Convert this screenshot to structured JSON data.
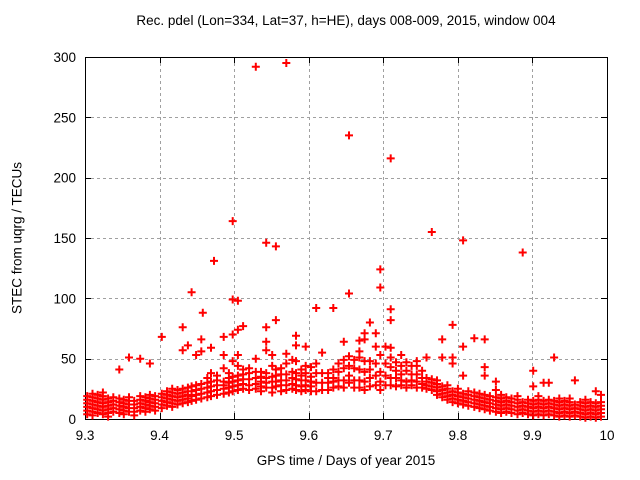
{
  "chart_data": {
    "type": "scatter",
    "title": "Rec. pdel (Lon=334, Lat=37, h=HE), days 008-009, 2015, window 004",
    "xlabel": "GPS time / Days of year 2015",
    "ylabel": "STEC from uqrg / TECUs",
    "xlim": [
      9.3,
      10
    ],
    "ylim": [
      0,
      300
    ],
    "xticks": [
      9.3,
      9.4,
      9.5,
      9.6,
      9.7,
      9.8,
      9.9,
      10
    ],
    "xtick_labels": [
      "9.3",
      "9.4",
      "9.5",
      "9.6",
      "9.7",
      "9.8",
      "9.9",
      "10"
    ],
    "yticks": [
      0,
      50,
      100,
      150,
      200,
      250,
      300
    ],
    "ytick_labels": [
      "0",
      "50",
      "100",
      "150",
      "200",
      "250",
      "300"
    ],
    "grid": "on",
    "legend": "none",
    "marker": "plus",
    "marker_color": "#ff0000",
    "grid_color": "#a0a0a0",
    "axis_color": "#000000",
    "columns": [
      {
        "x": 9.303,
        "ys": [
          4,
          7,
          10,
          13,
          16,
          19
        ]
      },
      {
        "x": 9.31,
        "ys": [
          3,
          6,
          9,
          12,
          15,
          18,
          21
        ]
      },
      {
        "x": 9.317,
        "ys": [
          5,
          8,
          11,
          14,
          17,
          20
        ]
      },
      {
        "x": 9.324,
        "ys": [
          4,
          7,
          10,
          13,
          16,
          19,
          22
        ]
      },
      {
        "x": 9.331,
        "ys": [
          2,
          5,
          8,
          11,
          14,
          17
        ]
      },
      {
        "x": 9.338,
        "ys": [
          6,
          9,
          12,
          15,
          18
        ]
      },
      {
        "x": 9.346,
        "ys": [
          5,
          8,
          11,
          14,
          17,
          41
        ]
      },
      {
        "x": 9.352,
        "ys": [
          4,
          7,
          10,
          13,
          16
        ]
      },
      {
        "x": 9.359,
        "ys": [
          6,
          9,
          12,
          15,
          18,
          51
        ]
      },
      {
        "x": 9.366,
        "ys": [
          3,
          6,
          9,
          12,
          15
        ]
      },
      {
        "x": 9.374,
        "ys": [
          7,
          10,
          13,
          16,
          19,
          50
        ]
      },
      {
        "x": 9.381,
        "ys": [
          6,
          9,
          12,
          15,
          18
        ]
      },
      {
        "x": 9.387,
        "ys": [
          8,
          11,
          14,
          17,
          20,
          46
        ]
      },
      {
        "x": 9.394,
        "ys": [
          7,
          10,
          13,
          16,
          19
        ]
      },
      {
        "x": 9.403,
        "ys": [
          9,
          12,
          15,
          18,
          21,
          68
        ]
      },
      {
        "x": 9.41,
        "ys": [
          11,
          14,
          17,
          20,
          23
        ]
      },
      {
        "x": 9.417,
        "ys": [
          10,
          13,
          16,
          19,
          22,
          25
        ]
      },
      {
        "x": 9.424,
        "ys": [
          12,
          15,
          18,
          21,
          24
        ]
      },
      {
        "x": 9.431,
        "ys": [
          13,
          16,
          19,
          22,
          25,
          57,
          76
        ]
      },
      {
        "x": 9.438,
        "ys": [
          14,
          17,
          20,
          23,
          26,
          61
        ]
      },
      {
        "x": 9.443,
        "ys": [
          15,
          19,
          23,
          27,
          105
        ]
      },
      {
        "x": 9.449,
        "ys": [
          16,
          20,
          24,
          28,
          53
        ]
      },
      {
        "x": 9.456,
        "ys": [
          17,
          21,
          25,
          29,
          56,
          66
        ]
      },
      {
        "x": 9.458,
        "ys": [
          88
        ]
      },
      {
        "x": 9.464,
        "ys": [
          18,
          22,
          26,
          30,
          34
        ]
      },
      {
        "x": 9.469,
        "ys": [
          19,
          23,
          27,
          31,
          38,
          59
        ]
      },
      {
        "x": 9.473,
        "ys": [
          131
        ]
      },
      {
        "x": 9.477,
        "ys": [
          20,
          24,
          28,
          32,
          36
        ]
      },
      {
        "x": 9.486,
        "ys": [
          21,
          25,
          28,
          31,
          42,
          53,
          68
        ]
      },
      {
        "x": 9.493,
        "ys": [
          22,
          26,
          30,
          34,
          38
        ]
      },
      {
        "x": 9.498,
        "ys": [
          23,
          27,
          31,
          35,
          48,
          70,
          99,
          164
        ]
      },
      {
        "x": 9.505,
        "ys": [
          24,
          28,
          32,
          36,
          44,
          53,
          74,
          98
        ]
      },
      {
        "x": 9.512,
        "ys": [
          25,
          29,
          33,
          37,
          41,
          77
        ]
      },
      {
        "x": 9.52,
        "ys": [
          24,
          28,
          33,
          38,
          42
        ]
      },
      {
        "x": 9.529,
        "ys": [
          25,
          29,
          34,
          39,
          50,
          292
        ]
      },
      {
        "x": 9.536,
        "ys": [
          23,
          27,
          31,
          35,
          39
        ]
      },
      {
        "x": 9.543,
        "ys": [
          26,
          30,
          34,
          38,
          57,
          64,
          76,
          146
        ]
      },
      {
        "x": 9.551,
        "ys": [
          22,
          26,
          31,
          35,
          44,
          53
        ]
      },
      {
        "x": 9.556,
        "ys": [
          27,
          31,
          36,
          41,
          82,
          143
        ]
      },
      {
        "x": 9.563,
        "ys": [
          23,
          28,
          32,
          37,
          42
        ]
      },
      {
        "x": 9.57,
        "ys": [
          24,
          28,
          32,
          37,
          46,
          54,
          295
        ]
      },
      {
        "x": 9.578,
        "ys": [
          25,
          29,
          34,
          39,
          49
        ]
      },
      {
        "x": 9.583,
        "ys": [
          24,
          28,
          33,
          38,
          48,
          61,
          69
        ]
      },
      {
        "x": 9.59,
        "ys": [
          23,
          27,
          32,
          36,
          41
        ]
      },
      {
        "x": 9.596,
        "ys": [
          24,
          28,
          32,
          38,
          44,
          60
        ]
      },
      {
        "x": 9.603,
        "ys": [
          23,
          27,
          31,
          35,
          43
        ]
      },
      {
        "x": 9.61,
        "ys": [
          23,
          30,
          38,
          46,
          92
        ]
      },
      {
        "x": 9.618,
        "ys": [
          24,
          30,
          38,
          55
        ]
      },
      {
        "x": 9.626,
        "ys": [
          24,
          30,
          34,
          38
        ]
      },
      {
        "x": 9.633,
        "ys": [
          26,
          31,
          34,
          41,
          92
        ]
      },
      {
        "x": 9.64,
        "ys": [
          27,
          32,
          39,
          46
        ]
      },
      {
        "x": 9.647,
        "ys": [
          26,
          32,
          42,
          49,
          64
        ]
      },
      {
        "x": 9.654,
        "ys": [
          30,
          36,
          44,
          52,
          104,
          235
        ]
      },
      {
        "x": 9.661,
        "ys": [
          26,
          32,
          42,
          49
        ]
      },
      {
        "x": 9.668,
        "ys": [
          26,
          32,
          41,
          51,
          56,
          65
        ]
      },
      {
        "x": 9.675,
        "ys": [
          24,
          31,
          39,
          48,
          66,
          71
        ]
      },
      {
        "x": 9.682,
        "ys": [
          27,
          34,
          41,
          48,
          80
        ]
      },
      {
        "x": 9.69,
        "ys": [
          28,
          36,
          46,
          60,
          71
        ]
      },
      {
        "x": 9.696,
        "ys": [
          24,
          31,
          39,
          53,
          109,
          124
        ]
      },
      {
        "x": 9.703,
        "ys": [
          28,
          36,
          46,
          60
        ]
      },
      {
        "x": 9.71,
        "ys": [
          28,
          34,
          43,
          51,
          59,
          82,
          91,
          216
        ]
      },
      {
        "x": 9.717,
        "ys": [
          27,
          34,
          40,
          47
        ]
      },
      {
        "x": 9.724,
        "ys": [
          28,
          32,
          37,
          44,
          53
        ]
      },
      {
        "x": 9.731,
        "ys": [
          26,
          31,
          40,
          47
        ]
      },
      {
        "x": 9.738,
        "ys": [
          28,
          32,
          37,
          44
        ]
      },
      {
        "x": 9.745,
        "ys": [
          26,
          31,
          37,
          44,
          48
        ]
      },
      {
        "x": 9.752,
        "ys": [
          26,
          29,
          34,
          40
        ]
      },
      {
        "x": 9.758,
        "ys": [
          25,
          28,
          31,
          34,
          51
        ]
      },
      {
        "x": 9.765,
        "ys": [
          24,
          27,
          30,
          33,
          155
        ]
      },
      {
        "x": 9.772,
        "ys": [
          20,
          23,
          26,
          29,
          32
        ]
      },
      {
        "x": 9.779,
        "ys": [
          18,
          21,
          24,
          27,
          51,
          66
        ]
      },
      {
        "x": 9.786,
        "ys": [
          16,
          19,
          22,
          25,
          28
        ]
      },
      {
        "x": 9.793,
        "ys": [
          14,
          17,
          20,
          23,
          46,
          51,
          78
        ]
      },
      {
        "x": 9.8,
        "ys": [
          13,
          16,
          19,
          22,
          25
        ]
      },
      {
        "x": 9.807,
        "ys": [
          12,
          15,
          18,
          21,
          36,
          60,
          148
        ]
      },
      {
        "x": 9.814,
        "ys": [
          11,
          14,
          17,
          20,
          23
        ]
      },
      {
        "x": 9.822,
        "ys": [
          10,
          13,
          16,
          19,
          22,
          67
        ]
      },
      {
        "x": 9.829,
        "ys": [
          9,
          12,
          15,
          18,
          21
        ]
      },
      {
        "x": 9.836,
        "ys": [
          8,
          11,
          14,
          17,
          20,
          36,
          43,
          66
        ]
      },
      {
        "x": 9.843,
        "ys": [
          7,
          10,
          13,
          16,
          19
        ]
      },
      {
        "x": 9.851,
        "ys": [
          6,
          9,
          12,
          15,
          18,
          24,
          31
        ]
      },
      {
        "x": 9.858,
        "ys": [
          5,
          8,
          11,
          14,
          17,
          20
        ]
      },
      {
        "x": 9.865,
        "ys": [
          6,
          9,
          12,
          15,
          18
        ]
      },
      {
        "x": 9.872,
        "ys": [
          5,
          8,
          11,
          14,
          17
        ]
      },
      {
        "x": 9.88,
        "ys": [
          4,
          7,
          10,
          13,
          16,
          19
        ]
      },
      {
        "x": 9.887,
        "ys": [
          5,
          8,
          11,
          14,
          138
        ]
      },
      {
        "x": 9.894,
        "ys": [
          4,
          7,
          10,
          13,
          16
        ]
      },
      {
        "x": 9.901,
        "ys": [
          3,
          6,
          9,
          12,
          15,
          27,
          40
        ]
      },
      {
        "x": 9.908,
        "ys": [
          4,
          7,
          10,
          13,
          16,
          19
        ]
      },
      {
        "x": 9.915,
        "ys": [
          3,
          6,
          9,
          12,
          15,
          30
        ]
      },
      {
        "x": 9.922,
        "ys": [
          4,
          7,
          10,
          13,
          16,
          30
        ]
      },
      {
        "x": 9.929,
        "ys": [
          3,
          6,
          9,
          12,
          15,
          51
        ]
      },
      {
        "x": 9.936,
        "ys": [
          2,
          5,
          8,
          11,
          14,
          17
        ]
      },
      {
        "x": 9.943,
        "ys": [
          3,
          6,
          9,
          12,
          15
        ]
      },
      {
        "x": 9.95,
        "ys": [
          2,
          5,
          8,
          11,
          14,
          17
        ]
      },
      {
        "x": 9.957,
        "ys": [
          3,
          6,
          9,
          12,
          32
        ]
      },
      {
        "x": 9.964,
        "ys": [
          2,
          5,
          8,
          11,
          14
        ]
      },
      {
        "x": 9.971,
        "ys": [
          1,
          4,
          7,
          10,
          13,
          16
        ]
      },
      {
        "x": 9.978,
        "ys": [
          2,
          5,
          8,
          11,
          14
        ]
      },
      {
        "x": 9.985,
        "ys": [
          1,
          4,
          7,
          10,
          13,
          23
        ]
      },
      {
        "x": 9.992,
        "ys": [
          2,
          5,
          8,
          11,
          14,
          20
        ]
      }
    ]
  }
}
